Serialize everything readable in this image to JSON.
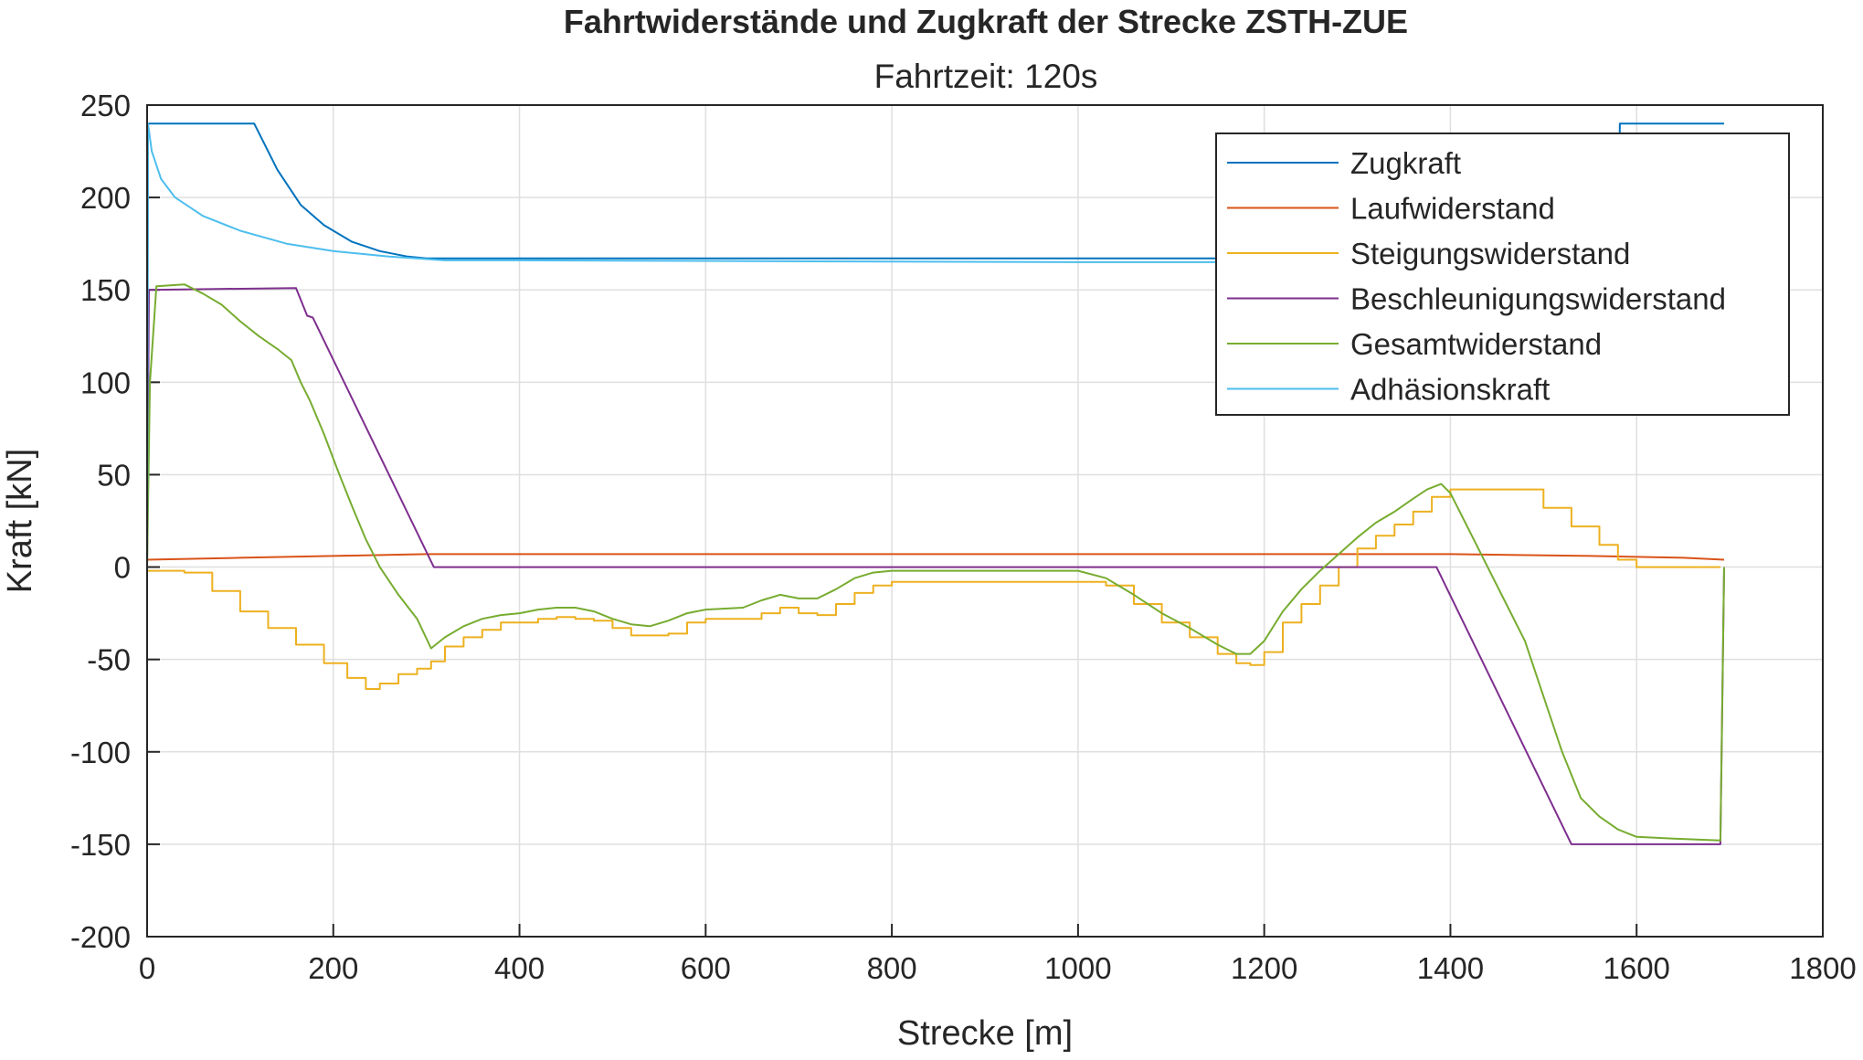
{
  "chart_data": {
    "type": "line",
    "title": "Fahrtwiderstände und Zugkraft der Strecke ZSTH-ZUE",
    "subtitle": "Fahrtzeit: 120s",
    "xlabel": "Strecke [m]",
    "ylabel": "Kraft [kN]",
    "xlim": [
      0,
      1800
    ],
    "ylim": [
      -200,
      250
    ],
    "xticks": [
      0,
      200,
      400,
      600,
      800,
      1000,
      1200,
      1400,
      1600,
      1800
    ],
    "yticks": [
      -200,
      -150,
      -100,
      -50,
      0,
      50,
      100,
      150,
      200,
      250
    ],
    "grid": true,
    "legend_position": "top-right",
    "series": [
      {
        "name": "Zugkraft",
        "color": "#0072BD",
        "step": false,
        "points": [
          [
            0,
            0
          ],
          [
            1,
            240
          ],
          [
            115,
            240
          ],
          [
            140,
            215
          ],
          [
            165,
            196
          ],
          [
            190,
            185
          ],
          [
            220,
            176
          ],
          [
            250,
            171
          ],
          [
            280,
            168
          ],
          [
            300,
            167
          ],
          [
            320,
            167
          ],
          [
            1580,
            167
          ],
          [
            1582,
            240
          ],
          [
            1694,
            240
          ]
        ]
      },
      {
        "name": "Laufwiderstand",
        "color": "#D95319",
        "step": false,
        "points": [
          [
            0,
            4
          ],
          [
            100,
            5
          ],
          [
            200,
            6
          ],
          [
            300,
            7
          ],
          [
            500,
            7
          ],
          [
            1000,
            7
          ],
          [
            1400,
            7
          ],
          [
            1550,
            6
          ],
          [
            1650,
            5
          ],
          [
            1694,
            4
          ]
        ]
      },
      {
        "name": "Steigungswiderstand",
        "color": "#EDB120",
        "step": true,
        "points": [
          [
            0,
            -2
          ],
          [
            20,
            -2
          ],
          [
            40,
            -3
          ],
          [
            70,
            -13
          ],
          [
            100,
            -24
          ],
          [
            130,
            -33
          ],
          [
            160,
            -42
          ],
          [
            190,
            -52
          ],
          [
            215,
            -60
          ],
          [
            235,
            -66
          ],
          [
            250,
            -63
          ],
          [
            270,
            -58
          ],
          [
            290,
            -55
          ],
          [
            305,
            -51
          ],
          [
            320,
            -43
          ],
          [
            340,
            -38
          ],
          [
            360,
            -34
          ],
          [
            380,
            -30
          ],
          [
            400,
            -30
          ],
          [
            420,
            -28
          ],
          [
            440,
            -27
          ],
          [
            460,
            -28
          ],
          [
            480,
            -29
          ],
          [
            500,
            -33
          ],
          [
            520,
            -37
          ],
          [
            560,
            -36
          ],
          [
            580,
            -30
          ],
          [
            600,
            -28
          ],
          [
            640,
            -28
          ],
          [
            660,
            -25
          ],
          [
            680,
            -22
          ],
          [
            700,
            -25
          ],
          [
            720,
            -26
          ],
          [
            740,
            -20
          ],
          [
            760,
            -14
          ],
          [
            780,
            -10
          ],
          [
            800,
            -8
          ],
          [
            860,
            -8
          ],
          [
            1000,
            -8
          ],
          [
            1030,
            -10
          ],
          [
            1060,
            -20
          ],
          [
            1090,
            -30
          ],
          [
            1120,
            -38
          ],
          [
            1150,
            -47
          ],
          [
            1170,
            -52
          ],
          [
            1185,
            -53
          ],
          [
            1200,
            -46
          ],
          [
            1220,
            -30
          ],
          [
            1240,
            -20
          ],
          [
            1260,
            -10
          ],
          [
            1280,
            0
          ],
          [
            1300,
            10
          ],
          [
            1320,
            17
          ],
          [
            1340,
            23
          ],
          [
            1360,
            30
          ],
          [
            1380,
            38
          ],
          [
            1400,
            42
          ],
          [
            1470,
            42
          ],
          [
            1500,
            32
          ],
          [
            1530,
            22
          ],
          [
            1560,
            12
          ],
          [
            1580,
            4
          ],
          [
            1600,
            0
          ],
          [
            1690,
            0
          ]
        ]
      },
      {
        "name": "Beschleunigungswiderstand",
        "color": "#7E2F8E",
        "step": false,
        "points": [
          [
            0,
            0
          ],
          [
            2,
            150
          ],
          [
            160,
            151
          ],
          [
            172,
            136
          ],
          [
            178,
            135
          ],
          [
            308,
            0
          ],
          [
            320,
            0
          ],
          [
            1385,
            0
          ],
          [
            1530,
            -150
          ],
          [
            1690,
            -150
          ],
          [
            1694,
            0
          ]
        ]
      },
      {
        "name": "Gesamtwiderstand",
        "color": "#77AC30",
        "step": false,
        "points": [
          [
            0,
            0
          ],
          [
            3,
            100
          ],
          [
            10,
            152
          ],
          [
            40,
            153
          ],
          [
            60,
            148
          ],
          [
            80,
            142
          ],
          [
            100,
            133
          ],
          [
            120,
            125
          ],
          [
            140,
            118
          ],
          [
            155,
            112
          ],
          [
            165,
            100
          ],
          [
            175,
            90
          ],
          [
            190,
            72
          ],
          [
            205,
            52
          ],
          [
            220,
            33
          ],
          [
            235,
            15
          ],
          [
            250,
            0
          ],
          [
            270,
            -15
          ],
          [
            290,
            -28
          ],
          [
            305,
            -44
          ],
          [
            320,
            -38
          ],
          [
            340,
            -32
          ],
          [
            360,
            -28
          ],
          [
            380,
            -26
          ],
          [
            400,
            -25
          ],
          [
            420,
            -23
          ],
          [
            440,
            -22
          ],
          [
            460,
            -22
          ],
          [
            480,
            -24
          ],
          [
            500,
            -28
          ],
          [
            520,
            -31
          ],
          [
            540,
            -32
          ],
          [
            560,
            -29
          ],
          [
            580,
            -25
          ],
          [
            600,
            -23
          ],
          [
            640,
            -22
          ],
          [
            660,
            -18
          ],
          [
            680,
            -15
          ],
          [
            700,
            -17
          ],
          [
            720,
            -17
          ],
          [
            740,
            -12
          ],
          [
            760,
            -6
          ],
          [
            780,
            -3
          ],
          [
            800,
            -2
          ],
          [
            860,
            -2
          ],
          [
            1000,
            -2
          ],
          [
            1030,
            -6
          ],
          [
            1060,
            -15
          ],
          [
            1090,
            -25
          ],
          [
            1120,
            -33
          ],
          [
            1150,
            -42
          ],
          [
            1170,
            -47
          ],
          [
            1185,
            -47
          ],
          [
            1200,
            -40
          ],
          [
            1220,
            -24
          ],
          [
            1240,
            -12
          ],
          [
            1260,
            -2
          ],
          [
            1280,
            7
          ],
          [
            1300,
            16
          ],
          [
            1320,
            24
          ],
          [
            1340,
            30
          ],
          [
            1360,
            37
          ],
          [
            1375,
            42
          ],
          [
            1390,
            45
          ],
          [
            1400,
            40
          ],
          [
            1420,
            20
          ],
          [
            1440,
            0
          ],
          [
            1460,
            -20
          ],
          [
            1480,
            -40
          ],
          [
            1500,
            -70
          ],
          [
            1520,
            -100
          ],
          [
            1540,
            -125
          ],
          [
            1560,
            -135
          ],
          [
            1580,
            -142
          ],
          [
            1600,
            -146
          ],
          [
            1640,
            -147
          ],
          [
            1690,
            -148
          ],
          [
            1694,
            0
          ]
        ]
      },
      {
        "name": "Adhäsionskraft",
        "color": "#4DBEEE",
        "step": false,
        "points": [
          [
            0,
            0
          ],
          [
            1,
            240
          ],
          [
            5,
            225
          ],
          [
            15,
            210
          ],
          [
            30,
            200
          ],
          [
            60,
            190
          ],
          [
            100,
            182
          ],
          [
            150,
            175
          ],
          [
            200,
            171
          ],
          [
            260,
            168
          ],
          [
            320,
            166
          ],
          [
            400,
            166
          ],
          [
            1000,
            165
          ],
          [
            1694,
            165
          ]
        ]
      }
    ]
  }
}
